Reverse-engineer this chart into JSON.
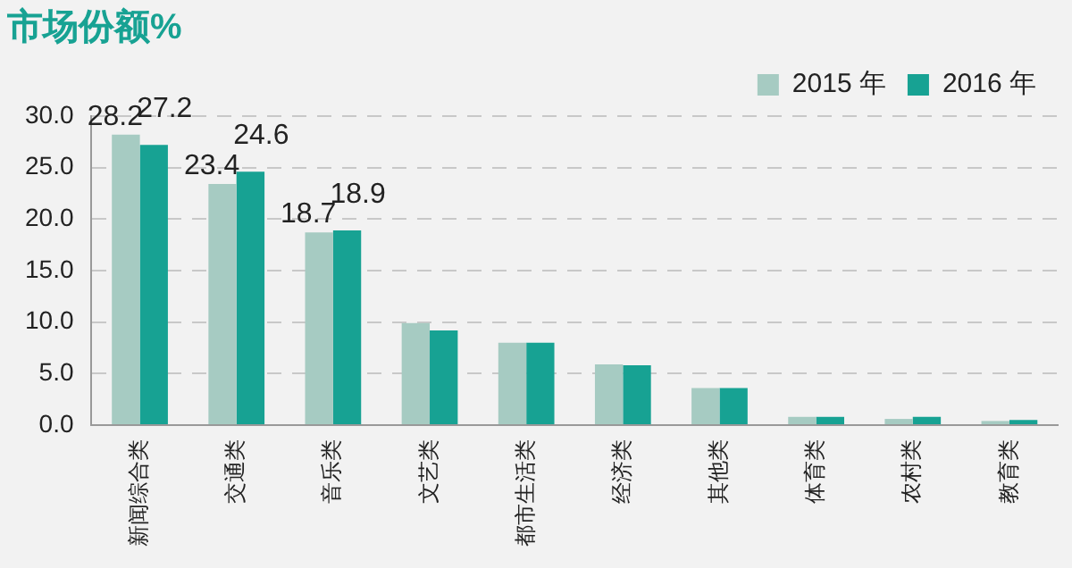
{
  "chart_data": {
    "type": "bar",
    "title": "市场份额%",
    "categories": [
      "新闻综合类",
      "交通类",
      "音乐类",
      "文艺类",
      "都市生活类",
      "经济类",
      "其他类",
      "体育类",
      "农村类",
      "教育类"
    ],
    "series": [
      {
        "name": "2015 年",
        "color": "#a6cbc2",
        "values": [
          28.2,
          23.4,
          18.7,
          9.9,
          8.0,
          5.9,
          3.6,
          0.8,
          0.6,
          0.4
        ],
        "value_labels": [
          "28.2",
          "23.4",
          "18.7",
          null,
          null,
          null,
          null,
          null,
          null,
          null
        ]
      },
      {
        "name": "2016 年",
        "color": "#17a293",
        "values": [
          27.2,
          24.6,
          18.9,
          9.2,
          8.0,
          5.8,
          3.6,
          0.8,
          0.8,
          0.5
        ],
        "value_labels": [
          "27.2",
          "24.6",
          "18.9",
          null,
          null,
          null,
          null,
          null,
          null,
          null
        ]
      }
    ],
    "ylim": [
      0,
      30
    ],
    "yticks": [
      {
        "value": 0,
        "label": "0.0"
      },
      {
        "value": 5,
        "label": "5.0"
      },
      {
        "value": 10,
        "label": "10.0"
      },
      {
        "value": 15,
        "label": "15.0"
      },
      {
        "value": 20,
        "label": "20.0"
      },
      {
        "value": 25,
        "label": "25.0"
      },
      {
        "value": 30,
        "label": "30.0"
      }
    ],
    "grid": "y",
    "legend": "top right"
  }
}
